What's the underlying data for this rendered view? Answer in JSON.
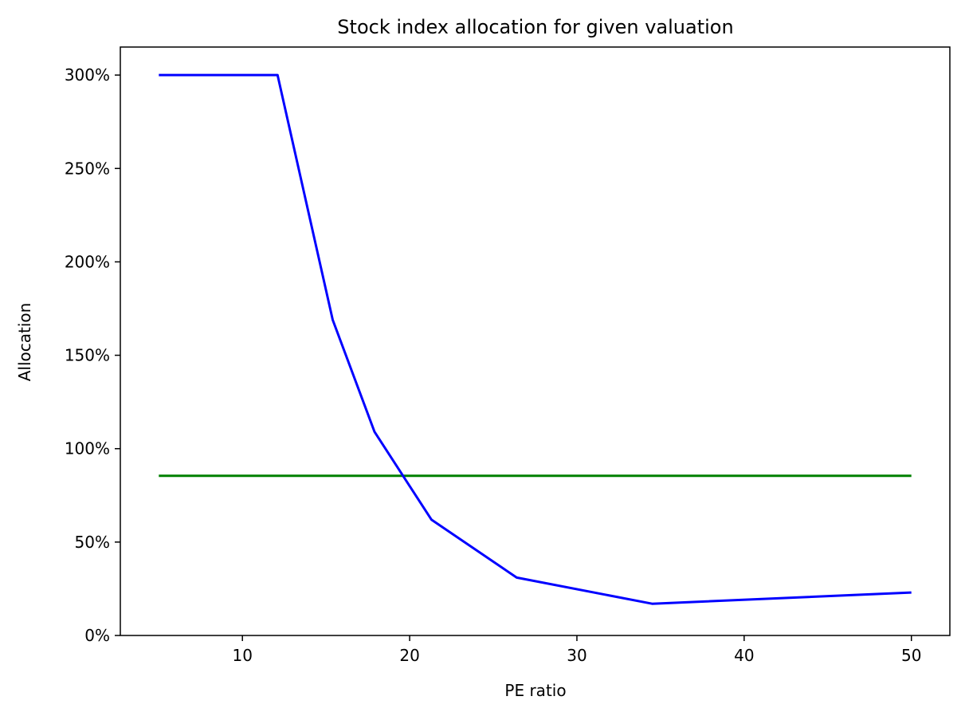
{
  "chart_data": {
    "type": "line",
    "title": "Stock index allocation for given valuation",
    "xlabel": "PE ratio",
    "ylabel": "Allocation",
    "xlim": [
      2.7,
      52.3
    ],
    "ylim": [
      0,
      3.15
    ],
    "x_ticks": [
      10,
      20,
      30,
      40,
      50
    ],
    "x_tick_labels": [
      "10",
      "20",
      "30",
      "40",
      "50"
    ],
    "y_ticks": [
      0,
      0.5,
      1.0,
      1.5,
      2.0,
      2.5,
      3.0
    ],
    "y_tick_labels": [
      "0%",
      "50%",
      "100%",
      "150%",
      "200%",
      "250%",
      "300%"
    ],
    "grid": false,
    "series": [
      {
        "color": "#0000ff",
        "x": [
          5,
          12.1,
          15.4,
          17.9,
          21.3,
          26.4,
          34.5,
          50
        ],
        "y": [
          3.0,
          3.0,
          1.69,
          1.09,
          0.62,
          0.31,
          0.17,
          0.23
        ]
      },
      {
        "color": "#008000",
        "x": [
          5,
          50
        ],
        "y": [
          0.855,
          0.855
        ]
      }
    ]
  }
}
